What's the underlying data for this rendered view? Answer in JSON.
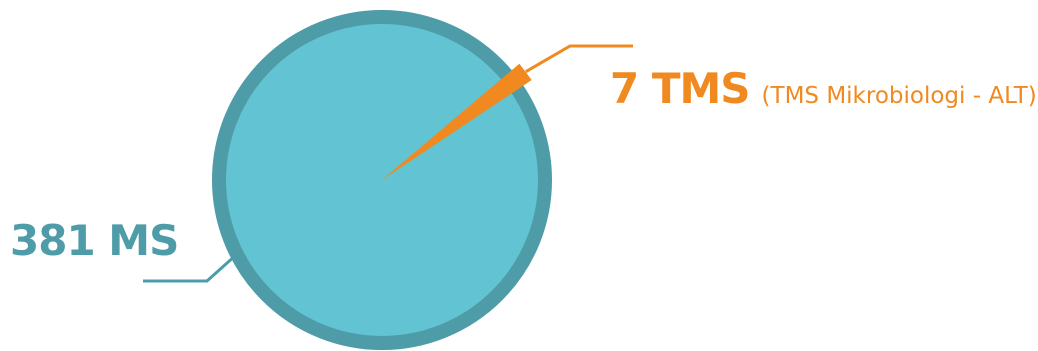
{
  "chart_data": {
    "type": "pie",
    "slices": [
      {
        "label": "MS",
        "value": 381,
        "display": "381 MS",
        "color": "#62C3D2",
        "border_color": "#4E9CA8"
      },
      {
        "label": "TMS",
        "value": 7,
        "display": "7 TMS",
        "note": "(TMS Mikrobiologi - ALT)",
        "color": "#F0891F"
      }
    ],
    "legend": "none"
  }
}
